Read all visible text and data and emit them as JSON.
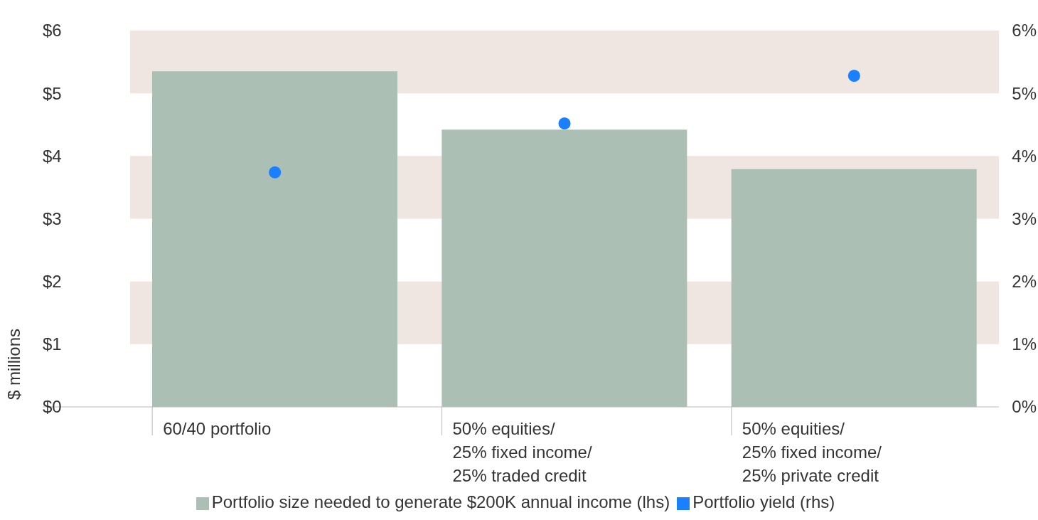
{
  "chart_data": {
    "type": "bar",
    "ylabel": "$ millions",
    "categories": [
      "60/40 portfolio",
      "50% equities/ 25% fixed income/ 25% traded credit",
      "50% equities/ 25% fixed income/ 25% private credit"
    ],
    "series": [
      {
        "name": "Portfolio size needed to generate $200K annual income (lhs)",
        "color": "#abbfb5",
        "values": [
          5.35,
          4.42,
          3.79
        ]
      },
      {
        "name": "Portfolio yield (rhs)",
        "type": "scatter",
        "axis": "y2",
        "color": "#1a80ff",
        "values": [
          3.74,
          4.52,
          5.28
        ]
      }
    ],
    "ylim": [
      0,
      6
    ],
    "yticks": [
      {
        "value": 0,
        "label": "$0"
      },
      {
        "value": 1,
        "label": "$1"
      },
      {
        "value": 2,
        "label": "$2"
      },
      {
        "value": 3,
        "label": "$3"
      },
      {
        "value": 4,
        "label": "$4"
      },
      {
        "value": 5,
        "label": "$5"
      },
      {
        "value": 6,
        "label": "$6"
      }
    ],
    "y2lim": [
      0,
      6
    ],
    "y2ticks": [
      {
        "value": 0,
        "label": "0%"
      },
      {
        "value": 1,
        "label": "1%"
      },
      {
        "value": 2,
        "label": "2%"
      },
      {
        "value": 3,
        "label": "3%"
      },
      {
        "value": 4,
        "label": "4%"
      },
      {
        "value": 5,
        "label": "5%"
      },
      {
        "value": 6,
        "label": "6%"
      }
    ],
    "bands": [
      {
        "axis": "y",
        "from": 1,
        "to": 2,
        "color": "#efe6e1"
      },
      {
        "axis": "y",
        "from": 3,
        "to": 4,
        "color": "#efe6e1"
      },
      {
        "axis": "y",
        "from": 5,
        "to": 6,
        "color": "#efe6e1"
      }
    ],
    "legend": "bottom",
    "marker": "circle"
  }
}
